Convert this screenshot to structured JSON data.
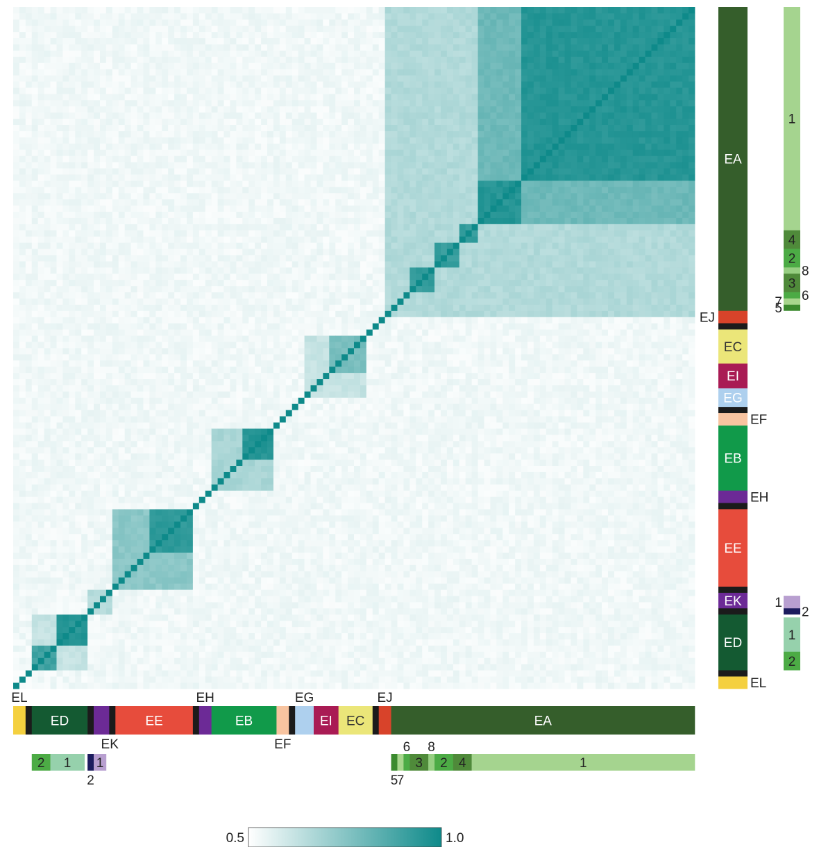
{
  "chart_data": {
    "type": "heatmap",
    "title": "",
    "xlabel": "",
    "ylabel": "",
    "n_samples": 110,
    "value_range": [
      0.5,
      1.0
    ],
    "colorbar": {
      "min_label": "0.5",
      "max_label": "1.0",
      "colors": [
        "#ffffff",
        "#0e8a8a"
      ]
    },
    "background_similarity": 0.53,
    "block_similarities": [
      {
        "from_sample": 60,
        "to_sample": 109,
        "value": 0.66
      },
      {
        "from_sample": 75,
        "to_sample": 109,
        "value": 0.8
      },
      {
        "from_sample": 82,
        "to_sample": 109,
        "value": 0.95
      },
      {
        "from_sample": 75,
        "to_sample": 81,
        "value": 0.95
      },
      {
        "from_sample": 72,
        "to_sample": 74,
        "value": 0.92
      },
      {
        "from_sample": 68,
        "to_sample": 71,
        "value": 0.92
      },
      {
        "from_sample": 64,
        "to_sample": 67,
        "value": 0.92
      },
      {
        "from_sample": 47,
        "to_sample": 56,
        "value": 0.62
      },
      {
        "from_sample": 51,
        "to_sample": 56,
        "value": 0.78
      },
      {
        "from_sample": 32,
        "to_sample": 41,
        "value": 0.68
      },
      {
        "from_sample": 37,
        "to_sample": 41,
        "value": 0.95
      },
      {
        "from_sample": 16,
        "to_sample": 28,
        "value": 0.74
      },
      {
        "from_sample": 22,
        "to_sample": 28,
        "value": 0.93
      },
      {
        "from_sample": 3,
        "to_sample": 11,
        "value": 0.62
      },
      {
        "from_sample": 7,
        "to_sample": 11,
        "value": 0.95
      },
      {
        "from_sample": 3,
        "to_sample": 6,
        "value": 0.9
      },
      {
        "from_sample": 12,
        "to_sample": 15,
        "value": 0.66
      }
    ],
    "clusters": [
      {
        "label": "EL",
        "color": "#f4d03f",
        "start": 0,
        "end": 2
      },
      {
        "label": "",
        "color": "#1b1b1b",
        "start": 2,
        "end": 3
      },
      {
        "label": "ED",
        "color": "#145a32",
        "start": 3,
        "end": 12
      },
      {
        "label": "",
        "color": "#1b1b1b",
        "start": 12,
        "end": 13
      },
      {
        "label": "EK",
        "color": "#6c2a96",
        "start": 13,
        "end": 15.5
      },
      {
        "label": "",
        "color": "#1b1b1b",
        "start": 15.5,
        "end": 16.5
      },
      {
        "label": "EE",
        "color": "#e74c3c",
        "start": 16.5,
        "end": 29
      },
      {
        "label": "",
        "color": "#1b1b1b",
        "start": 29,
        "end": 30
      },
      {
        "label": "EH",
        "color": "#6c2a96",
        "start": 30,
        "end": 32
      },
      {
        "label": "EB",
        "color": "#119a4a",
        "start": 32,
        "end": 42.5
      },
      {
        "label": "EF",
        "color": "#f8c4a0",
        "start": 42.5,
        "end": 44.5
      },
      {
        "label": "",
        "color": "#1b1b1b",
        "start": 44.5,
        "end": 45.5
      },
      {
        "label": "EG",
        "color": "#aed0ee",
        "start": 45.5,
        "end": 48.5
      },
      {
        "label": "EI",
        "color": "#a91b54",
        "start": 48.5,
        "end": 52.5
      },
      {
        "label": "EC",
        "color": "#ebe679",
        "start": 52.5,
        "end": 58
      },
      {
        "label": "",
        "color": "#1b1b1b",
        "start": 58,
        "end": 59
      },
      {
        "label": "EJ",
        "color": "#d8432a",
        "start": 59,
        "end": 61
      },
      {
        "label": "EA",
        "color": "#355e2b",
        "start": 61,
        "end": 110
      }
    ],
    "subclusters": [
      {
        "label": "2",
        "color": "#4cab45",
        "start": 3,
        "end": 6
      },
      {
        "label": "1",
        "color": "#96d1ac",
        "start": 6,
        "end": 11.5
      },
      {
        "label": "2",
        "color": "#1c1c5e",
        "start": 12,
        "end": 13
      },
      {
        "label": "1",
        "color": "#b89fd0",
        "start": 13,
        "end": 15
      },
      {
        "label": "5",
        "color": "#3b8a2e",
        "start": 61,
        "end": 62
      },
      {
        "label": "7",
        "color": "#a8d68d",
        "start": 62,
        "end": 63
      },
      {
        "label": "6",
        "color": "#4cab45",
        "start": 63,
        "end": 64
      },
      {
        "label": "3",
        "color": "#4f8a3a",
        "start": 64,
        "end": 67
      },
      {
        "label": "8",
        "color": "#97cf82",
        "start": 67,
        "end": 68
      },
      {
        "label": "2",
        "color": "#4cab45",
        "start": 68,
        "end": 71
      },
      {
        "label": "4",
        "color": "#4f8a3a",
        "start": 71,
        "end": 74
      },
      {
        "label": "1",
        "color": "#a5d48f",
        "start": 74,
        "end": 110
      }
    ]
  }
}
